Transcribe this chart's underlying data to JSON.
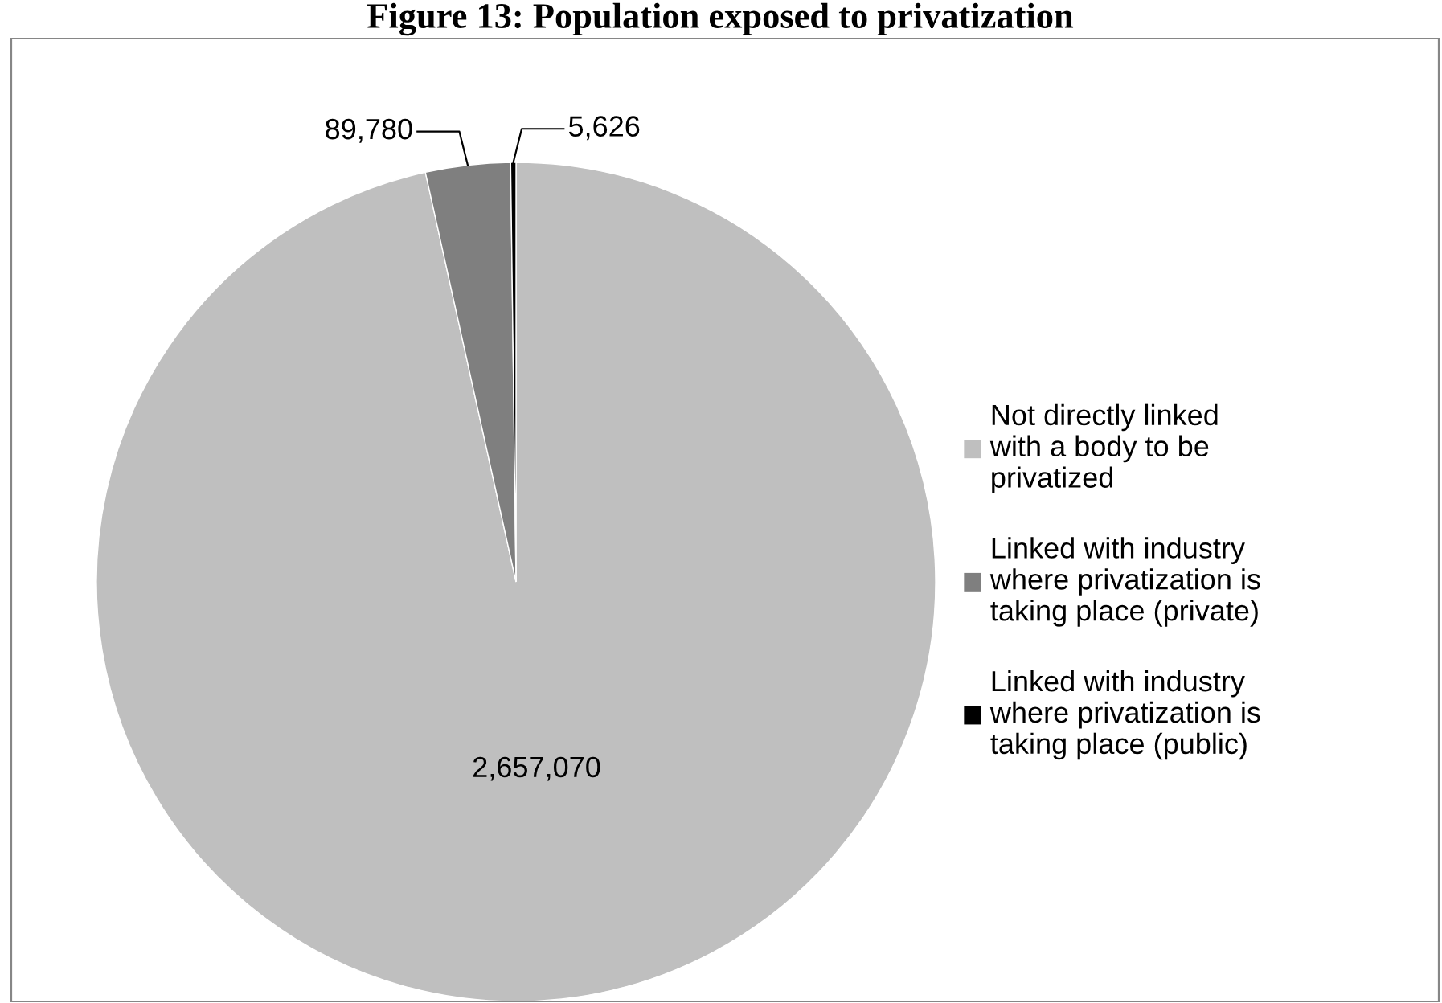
{
  "chart_data": {
    "type": "pie",
    "title": "Figure 13: Population exposed to privatization",
    "categories": [
      "Not directly linked with a body to be privatized",
      "Linked with industry where privatization is taking place (private)",
      "Linked with industry where privatization is taking place (public)"
    ],
    "values": [
      2657070,
      89780,
      5626
    ],
    "colors": [
      "#bfbfbf",
      "#7f7f7f",
      "#000000"
    ],
    "value_labels": [
      "2,657,070",
      "89,780",
      "5,626"
    ],
    "legend": "right"
  }
}
